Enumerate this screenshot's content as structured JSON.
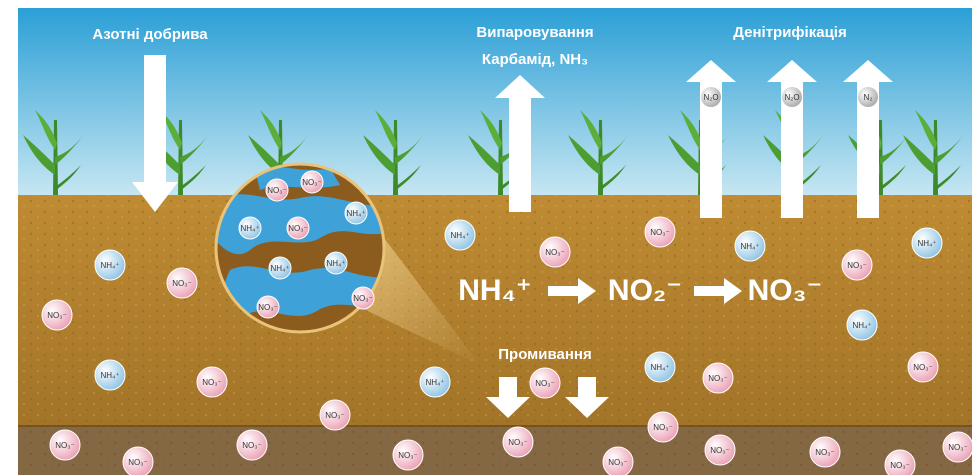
{
  "labels": {
    "fertilizer": "Азотні добрива",
    "volatilization": "Випаровування",
    "urea": "Карбамід, NH₃",
    "denitrification": "Денітрифікація",
    "leaching": "Промивання"
  },
  "equation": [
    "NH₄⁺",
    "NO₂⁻",
    "NO₃⁻"
  ],
  "gases": [
    "N₂O",
    "N₂O",
    "N₂"
  ],
  "ions": [
    "NH₄⁺",
    "NO₃⁻",
    "NO₃⁻",
    "NH₄⁺",
    "NO₃⁻",
    "NO₃⁻",
    "NH₄⁺",
    "NO₃⁻",
    "NO₃⁻",
    "NH₄⁺",
    "NO₃⁻",
    "NH₄⁺",
    "NH₄⁺",
    "NH₄⁺",
    "NO₃⁻",
    "NH₄⁺",
    "NO₃⁻",
    "NO₃⁻",
    "NO₃⁻",
    "NO₃⁻",
    "NO₃⁻",
    "NO₃⁻",
    "NO₃⁻",
    "NO₃⁻",
    "NO₃⁻",
    "NO₃⁻",
    "NO₃⁻",
    "NO₃⁻",
    "NO₃⁻",
    "NO₃⁻",
    "NO₃⁻",
    "NH₄⁺",
    "NO₃⁻",
    "NH₄⁺",
    "NH₄⁺",
    "NH₄⁺",
    "NO₃⁻",
    "NO₃⁻"
  ]
}
